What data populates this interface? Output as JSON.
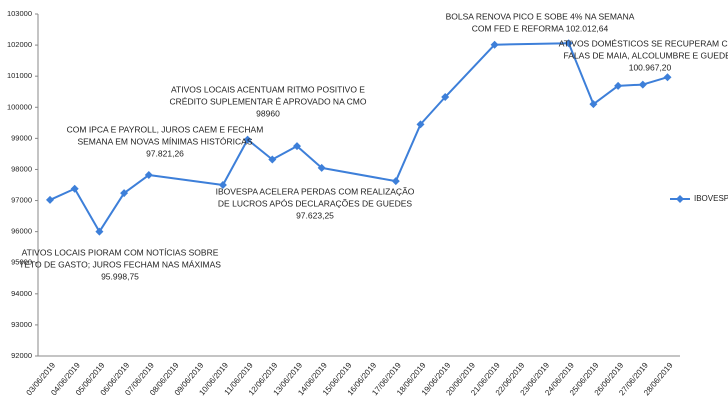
{
  "chart_data": {
    "type": "line",
    "categories": [
      "03/06/2019",
      "04/06/2019",
      "05/06/2019",
      "06/06/2019",
      "07/06/2019",
      "08/06/2019",
      "09/06/2019",
      "10/06/2019",
      "11/06/2019",
      "12/06/2019",
      "13/06/2019",
      "14/06/2019",
      "15/06/2019",
      "16/06/2019",
      "17/06/2019",
      "18/06/2019",
      "19/06/2019",
      "20/06/2019",
      "21/06/2019",
      "22/06/2019",
      "23/06/2019",
      "24/06/2019",
      "25/06/2019",
      "26/06/2019",
      "27/06/2019",
      "28/06/2019"
    ],
    "series": [
      {
        "name": "IBOVESPA",
        "color": "#3d7fd9",
        "values": [
          97020,
          97380,
          95998.75,
          97240,
          97821.26,
          null,
          null,
          97500,
          98960,
          98320,
          98750,
          98050,
          null,
          null,
          97623.25,
          99450,
          100330,
          null,
          102012.64,
          null,
          null,
          102060,
          100100,
          100690,
          100730,
          100967.2
        ]
      }
    ],
    "ylim": [
      92000,
      103000
    ],
    "yticks": [
      92000,
      93000,
      94000,
      95000,
      96000,
      97000,
      98000,
      99000,
      100000,
      101000,
      102000,
      103000
    ],
    "legend": "right",
    "annotations": [
      {
        "lines": [
          "ATIVOS LOCAIS PIORAM COM NOTÍCIAS SOBRE",
          "TETO DE GASTO; JUROS FECHAM NAS MÁXIMAS",
          "95.998,75"
        ]
      },
      {
        "lines": [
          "COM IPCA E PAYROLL, JUROS CAEM E FECHAM",
          "SEMANA EM NOVAS MÍNIMAS HISTÓRICAS",
          "97.821,26"
        ]
      },
      {
        "lines": [
          "ATIVOS LOCAIS ACENTUAM RITMO POSITIVO E",
          "CRÉDITO SUPLEMENTAR É APROVADO NA CMO",
          "98960"
        ]
      },
      {
        "lines": [
          "IBOVESPA ACELERA PERDAS COM REALIZAÇÃO",
          "DE LUCROS APÓS DECLARAÇÕES DE GUEDES",
          "97.623,25"
        ]
      },
      {
        "lines": [
          "BOLSA RENOVA PICO E SOBE 4% NA SEMANA",
          "COM FED E REFORMA 102.012,64"
        ]
      },
      {
        "lines": [
          "ATIVOS DOMÉSTICOS SE RECUPERAM COM",
          "FALAS DE MAIA, ALCOLUMBRE E GUEDES",
          "100.967,20"
        ]
      }
    ]
  }
}
